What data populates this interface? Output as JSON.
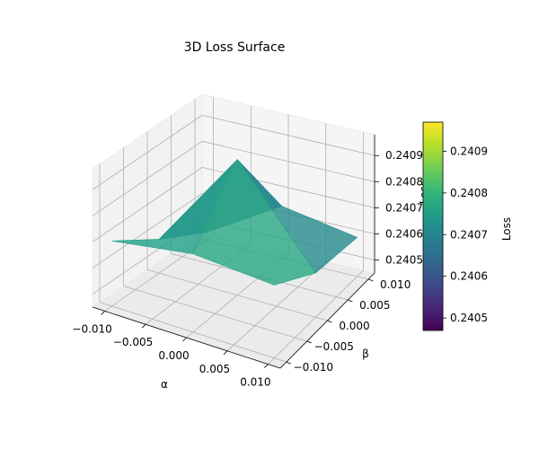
{
  "chart_data": {
    "type": "surface",
    "title": "3D Loss Surface",
    "xlabel": "α",
    "ylabel": "β",
    "zlabel": "Loss",
    "colorbar_label": "Loss",
    "colormap": "viridis",
    "xlim": [
      -0.0115,
      0.0115
    ],
    "ylim": [
      -0.0115,
      0.0115
    ],
    "zlim": [
      0.24045,
      0.24098
    ],
    "x_ticks": [
      "−0.010",
      "−0.005",
      "0.000",
      "0.005",
      "0.010"
    ],
    "x_tick_values": [
      -0.01,
      -0.005,
      0,
      0.005,
      0.01
    ],
    "y_ticks": [
      "−0.010",
      "−0.005",
      "0.000",
      "0.005",
      "0.010"
    ],
    "y_tick_values": [
      -0.01,
      -0.005,
      0,
      0.005,
      0.01
    ],
    "z_ticks": [
      "0.2405",
      "0.2406",
      "0.2407",
      "0.2408",
      "0.2409"
    ],
    "z_tick_values": [
      0.2405,
      0.2406,
      0.2407,
      0.2408,
      0.2409
    ],
    "colorbar_ticks": [
      "0.2405",
      "0.2406",
      "0.2407",
      "0.2408",
      "0.2409"
    ],
    "colorbar_tick_values": [
      0.2405,
      0.2406,
      0.2407,
      0.2408,
      0.2409
    ],
    "colorbar_range": [
      0.24047,
      0.24097
    ],
    "surface": {
      "x": [
        -0.01,
        0,
        0.01
      ],
      "y": [
        -0.01,
        0,
        0.01
      ],
      "z": [
        [
          0.2407,
          0.24075,
          0.24073
        ],
        [
          0.24058,
          0.24097,
          0.24062
        ],
        [
          0.24048,
          0.24065,
          0.2406
        ]
      ]
    }
  }
}
